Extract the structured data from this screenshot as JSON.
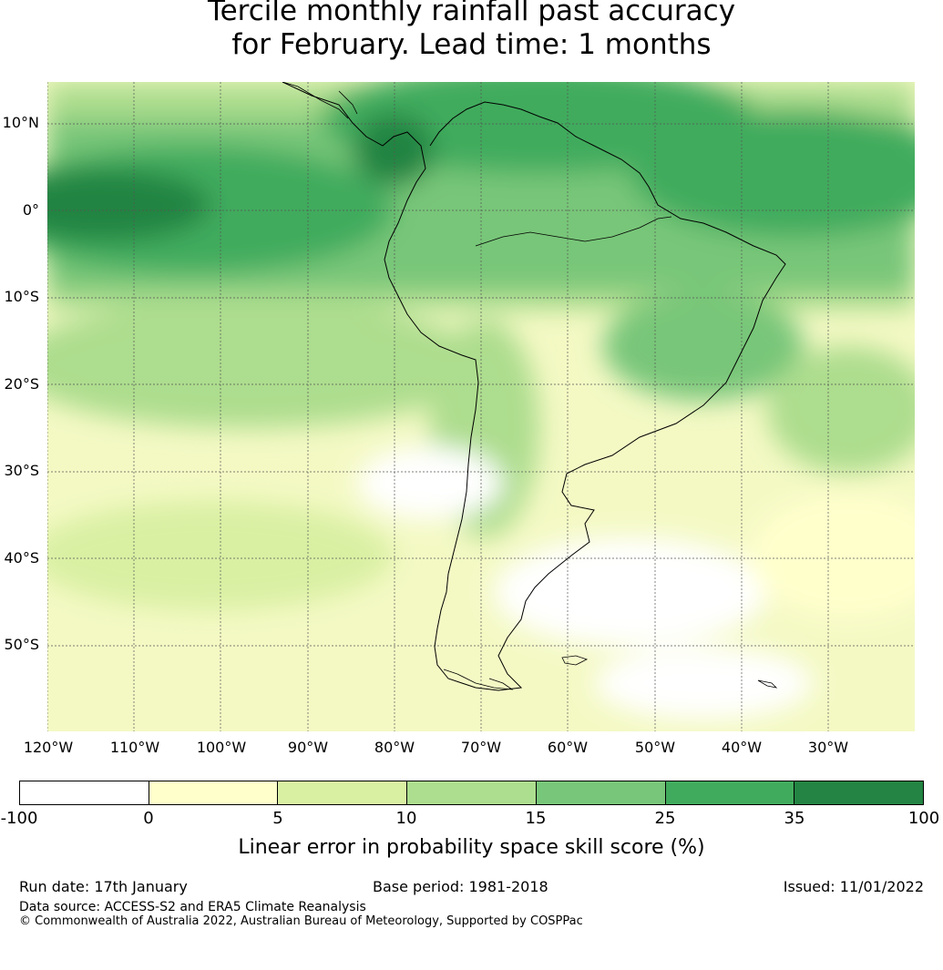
{
  "title": {
    "line1": "Tercile monthly rainfall past accuracy",
    "line2": "for February. Lead time: 1 months"
  },
  "map": {
    "lat_labels": [
      "10°N",
      "0°",
      "10°S",
      "20°S",
      "30°S",
      "40°S",
      "50°S"
    ],
    "lon_labels": [
      "120°W",
      "110°W",
      "100°W",
      "90°W",
      "80°W",
      "70°W",
      "60°W",
      "50°W",
      "40°W",
      "30°W"
    ],
    "colors": {
      "coastline": "#000000",
      "gridline": "#555555"
    }
  },
  "colorbar": {
    "ticks": [
      "-100",
      "0",
      "5",
      "10",
      "15",
      "25",
      "35",
      "100"
    ],
    "colors": [
      "#ffffff",
      "#ffffcc",
      "#d9f0a3",
      "#addd8e",
      "#78c679",
      "#41ab5d",
      "#238443"
    ],
    "label": "Linear error in probability space skill score (%)"
  },
  "footer": {
    "run_date": "Run date: 17th January",
    "base_period": "Base period: 1981-2018",
    "issued": "Issued: 11/01/2022",
    "data_source": "Data source: ACCESS-S2 and ERA5 Climate Reanalysis",
    "copyright": "© Commonwealth of Australia 2022, Australian Bureau of Meteorology, Supported by COSPPac"
  }
}
